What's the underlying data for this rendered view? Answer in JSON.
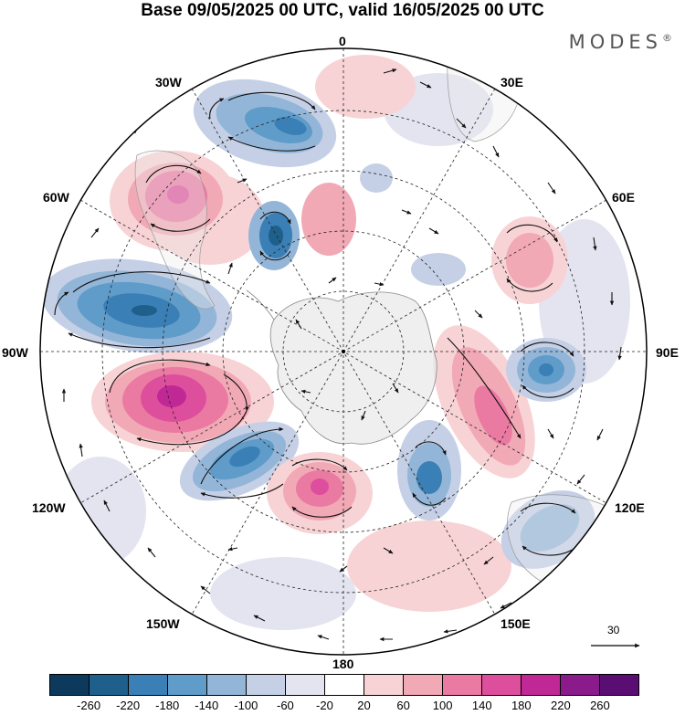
{
  "title": "Base 09/05/2025 00 UTC, valid 16/05/2025 00 UTC",
  "brand": "MODES",
  "brand_mark": "®",
  "longitude_labels": {
    "lon_0": "0",
    "lon_30e": "30E",
    "lon_60e": "60E",
    "lon_90e": "90E",
    "lon_120e": "120E",
    "lon_150e": "150E",
    "lon_180": "180",
    "lon_150w": "150W",
    "lon_120w": "120W",
    "lon_90w": "90W",
    "lon_60w": "60W",
    "lon_30w": "30W"
  },
  "vector_scale_label": "30",
  "colorbar": {
    "levels": [
      "-260",
      "-220",
      "-180",
      "-140",
      "-100",
      "-60",
      "-20",
      "20",
      "60",
      "100",
      "140",
      "180",
      "220",
      "260"
    ],
    "colors": [
      "#0d3a5c",
      "#1f5f8b",
      "#3a7fb5",
      "#5f9cc9",
      "#93b6d8",
      "#c5d0e6",
      "#e3e4f0",
      "#ffffff",
      "#f8d3d5",
      "#f2a9b6",
      "#ea7aa2",
      "#dd4f9c",
      "#c02896",
      "#8b1a8a",
      "#5a0d73"
    ]
  },
  "map_features": {
    "projection": "polar stereographic south",
    "graticule": "dashed",
    "field": "height anomaly with wind vectors"
  }
}
